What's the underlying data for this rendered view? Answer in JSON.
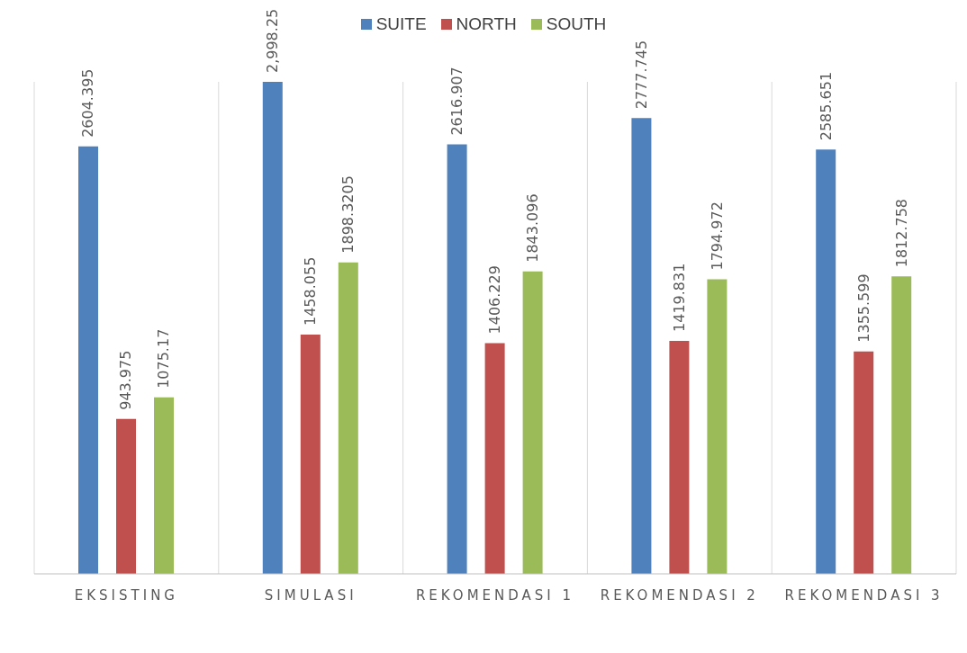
{
  "chart_data": {
    "type": "bar",
    "categories": [
      "EKSISTING",
      "SIMULASI",
      "REKOMENDASI 1",
      "REKOMENDASI 2",
      "REKOMENDASI 3"
    ],
    "series": [
      {
        "name": "SUITE",
        "color": "#4f81bd",
        "values": [
          2604.395,
          2998.25,
          2616.907,
          2777.745,
          2585.651
        ],
        "value_labels": [
          "2604.395",
          "2,998.25",
          "2616.907",
          "2777.745",
          "2585.651"
        ]
      },
      {
        "name": "NORTH",
        "color": "#c0504d",
        "values": [
          943.975,
          1458.055,
          1406.229,
          1419.831,
          1355.599
        ],
        "value_labels": [
          "943.975",
          "1458.055",
          "1406.229",
          "1419.831",
          "1355.599"
        ]
      },
      {
        "name": "SOUTH",
        "color": "#9bbb59",
        "values": [
          1075.17,
          1898.3205,
          1843.096,
          1794.972,
          1812.758
        ],
        "value_labels": [
          "1075.17",
          "1898.3205",
          "1843.096",
          "1794.972",
          "1812.758"
        ]
      }
    ],
    "grid": "x",
    "legend": "top"
  }
}
